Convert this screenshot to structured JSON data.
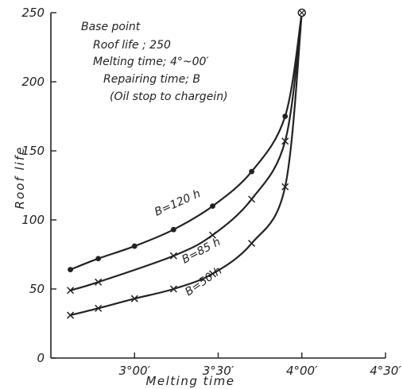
{
  "chart_data": {
    "type": "line",
    "title": "",
    "xlabel": "Melting time",
    "ylabel": "Roof life",
    "xlim": [
      150,
      270
    ],
    "ylim": [
      0,
      250
    ],
    "x_ticks": [
      {
        "value": 180,
        "label": "3°00′"
      },
      {
        "value": 210,
        "label": "3°30′"
      },
      {
        "value": 240,
        "label": "4°00′"
      },
      {
        "value": 270,
        "label": "4°30′"
      }
    ],
    "y_ticks": [
      {
        "value": 0,
        "label": "0"
      },
      {
        "value": 50,
        "label": "50"
      },
      {
        "value": 100,
        "label": "100"
      },
      {
        "value": 150,
        "label": "150"
      },
      {
        "value": 200,
        "label": "200"
      },
      {
        "value": 250,
        "label": "250"
      }
    ],
    "annotation_lines": [
      "Base point",
      "Roof life ; 250",
      "Melting time; 4°~00′",
      "Repairing time; B",
      "(Oil stop to chargein)"
    ],
    "base_point": {
      "x": 240,
      "y": 250
    },
    "series": [
      {
        "name": "B=120 h",
        "marker": "dot",
        "x": [
          157,
          167,
          180,
          194,
          208,
          222,
          234
        ],
        "y": [
          64,
          72,
          81,
          93,
          110,
          135,
          175
        ]
      },
      {
        "name": "B=85 h",
        "marker": "cross",
        "x": [
          157,
          167,
          194,
          208,
          222,
          234
        ],
        "y": [
          49,
          55,
          74,
          89,
          115,
          157
        ]
      },
      {
        "name": "B=50 h",
        "marker": "cross",
        "x": [
          157,
          167,
          180,
          194,
          208,
          222,
          234
        ],
        "y": [
          31,
          36,
          43,
          50,
          61,
          83,
          124
        ]
      }
    ],
    "grid": false,
    "legend": "inline labels on curves"
  }
}
